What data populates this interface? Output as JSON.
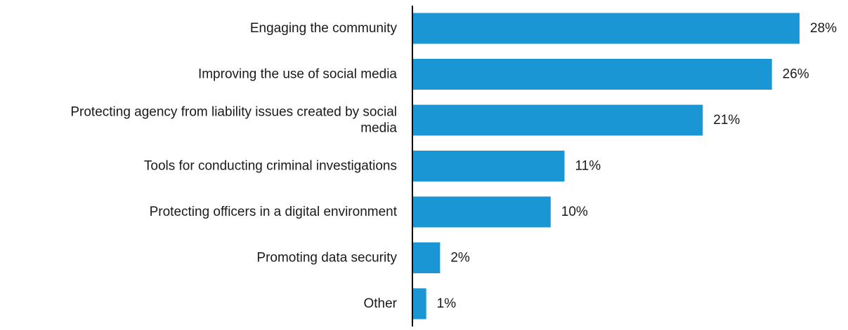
{
  "chart_data": {
    "type": "bar",
    "orientation": "horizontal",
    "categories": [
      "Engaging the community",
      "Improving the use of social media",
      "Protecting agency from liability issues created by social media",
      "Tools for conducting criminal investigations",
      "Protecting officers in a digital environment",
      "Promoting data security",
      "Other"
    ],
    "category_lines": [
      [
        "Engaging the community"
      ],
      [
        "Improving the use of social media"
      ],
      [
        "Protecting agency from liability issues created by social",
        "media"
      ],
      [
        "Tools for conducting criminal investigations"
      ],
      [
        "Protecting officers in a digital environment"
      ],
      [
        "Promoting data security"
      ],
      [
        "Other"
      ]
    ],
    "values": [
      28,
      26,
      21,
      11,
      10,
      2,
      1
    ],
    "data_labels": [
      "28%",
      "26%",
      "21%",
      "11%",
      "10%",
      "2%",
      "1%"
    ],
    "bar_color": "#1B96D4",
    "axis_color": "#000000",
    "label_color": "#1a1a1a",
    "title": "",
    "xlabel": "",
    "ylabel": "",
    "xlim": [
      0,
      28
    ],
    "grid": false,
    "legend": "none"
  }
}
